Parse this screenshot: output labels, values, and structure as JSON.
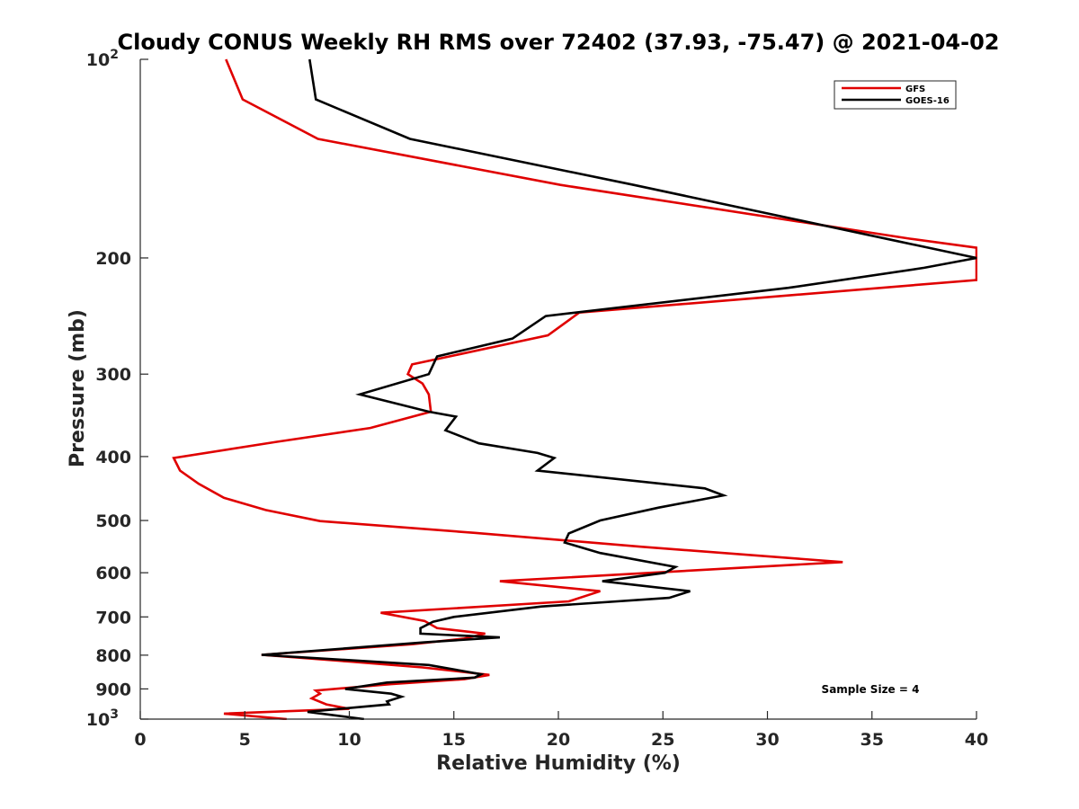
{
  "chart_data": {
    "type": "line",
    "title": "Cloudy CONUS Weekly RH RMS over 72402 (37.93, -75.47) @ 2021-04-02",
    "xlabel": "Relative Humidity (%)",
    "ylabel": "Pressure (mb)",
    "xlim": [
      0,
      40
    ],
    "ylim": [
      100,
      1000
    ],
    "y_scale": "log",
    "y_reversed": true,
    "x_ticks": [
      0,
      5,
      10,
      15,
      20,
      25,
      30,
      35,
      40
    ],
    "y_ticks": [
      {
        "value": 100,
        "base": "10",
        "exp": "2"
      },
      {
        "value": 200,
        "label": "200"
      },
      {
        "value": 300,
        "label": "300"
      },
      {
        "value": 400,
        "label": "400"
      },
      {
        "value": 500,
        "label": "500"
      },
      {
        "value": 600,
        "label": "600"
      },
      {
        "value": 700,
        "label": "700"
      },
      {
        "value": 800,
        "label": "800"
      },
      {
        "value": 900,
        "label": "900"
      },
      {
        "value": 1000,
        "base": "10",
        "exp": "3"
      }
    ],
    "grid": false,
    "legend_position": "top-right",
    "series": [
      {
        "name": "GFS",
        "color": "#e00000",
        "points": [
          [
            4.1,
            100
          ],
          [
            4.9,
            115
          ],
          [
            8.5,
            132
          ],
          [
            20.1,
            155
          ],
          [
            36.8,
            187
          ],
          [
            40.0,
            193
          ],
          [
            40.0,
            216
          ],
          [
            21.0,
            242
          ],
          [
            19.5,
            262
          ],
          [
            13.0,
            290
          ],
          [
            12.8,
            300
          ],
          [
            13.5,
            310
          ],
          [
            13.8,
            322
          ],
          [
            13.9,
            342
          ],
          [
            11.0,
            362
          ],
          [
            6.5,
            380
          ],
          [
            1.6,
            402
          ],
          [
            1.9,
            420
          ],
          [
            2.8,
            440
          ],
          [
            4.0,
            462
          ],
          [
            6.0,
            482
          ],
          [
            8.6,
            501
          ],
          [
            16.0,
            522
          ],
          [
            24.0,
            548
          ],
          [
            33.6,
            578
          ],
          [
            17.2,
            618
          ],
          [
            22.0,
            640
          ],
          [
            20.5,
            663
          ],
          [
            11.5,
            690
          ],
          [
            13.6,
            710
          ],
          [
            14.2,
            728
          ],
          [
            16.5,
            742
          ],
          [
            15.5,
            755
          ],
          [
            13.0,
            770
          ],
          [
            5.8,
            799
          ],
          [
            10.0,
            818
          ],
          [
            13.5,
            835
          ],
          [
            16.7,
            857
          ],
          [
            15.5,
            870
          ],
          [
            12.0,
            885
          ],
          [
            8.4,
            905
          ],
          [
            8.6,
            915
          ],
          [
            8.2,
            930
          ],
          [
            8.9,
            950
          ],
          [
            10.0,
            965
          ],
          [
            4.0,
            981
          ],
          [
            7.0,
            1000
          ]
        ]
      },
      {
        "name": "GOES-16",
        "color": "#000000",
        "points": [
          [
            8.1,
            100
          ],
          [
            8.4,
            115
          ],
          [
            12.9,
            132
          ],
          [
            23.6,
            155
          ],
          [
            36.0,
            188
          ],
          [
            40.0,
            200
          ],
          [
            37.5,
            207
          ],
          [
            31.0,
            222
          ],
          [
            19.4,
            245
          ],
          [
            17.8,
            265
          ],
          [
            14.2,
            282
          ],
          [
            13.8,
            300
          ],
          [
            10.5,
            322
          ],
          [
            13.8,
            342
          ],
          [
            15.1,
            348
          ],
          [
            14.6,
            365
          ],
          [
            16.2,
            382
          ],
          [
            19.0,
            395
          ],
          [
            19.8,
            402
          ],
          [
            19.0,
            420
          ],
          [
            27.0,
            447
          ],
          [
            27.9,
            458
          ],
          [
            24.8,
            478
          ],
          [
            22.0,
            500
          ],
          [
            20.5,
            523
          ],
          [
            20.3,
            540
          ],
          [
            22.0,
            560
          ],
          [
            25.6,
            588
          ],
          [
            25.1,
            600
          ],
          [
            22.1,
            618
          ],
          [
            26.3,
            640
          ],
          [
            25.3,
            655
          ],
          [
            19.2,
            675
          ],
          [
            15.0,
            700
          ],
          [
            14.0,
            712
          ],
          [
            13.4,
            728
          ],
          [
            13.4,
            742
          ],
          [
            17.2,
            752
          ],
          [
            13.6,
            765
          ],
          [
            5.8,
            799
          ],
          [
            13.8,
            828
          ],
          [
            16.3,
            855
          ],
          [
            16.0,
            865
          ],
          [
            11.8,
            880
          ],
          [
            9.8,
            900
          ],
          [
            12.0,
            915
          ],
          [
            12.5,
            925
          ],
          [
            11.8,
            940
          ],
          [
            11.9,
            950
          ],
          [
            8.0,
            975
          ],
          [
            10.7,
            1000
          ]
        ]
      }
    ],
    "annotation": "Sample Size = 4"
  }
}
